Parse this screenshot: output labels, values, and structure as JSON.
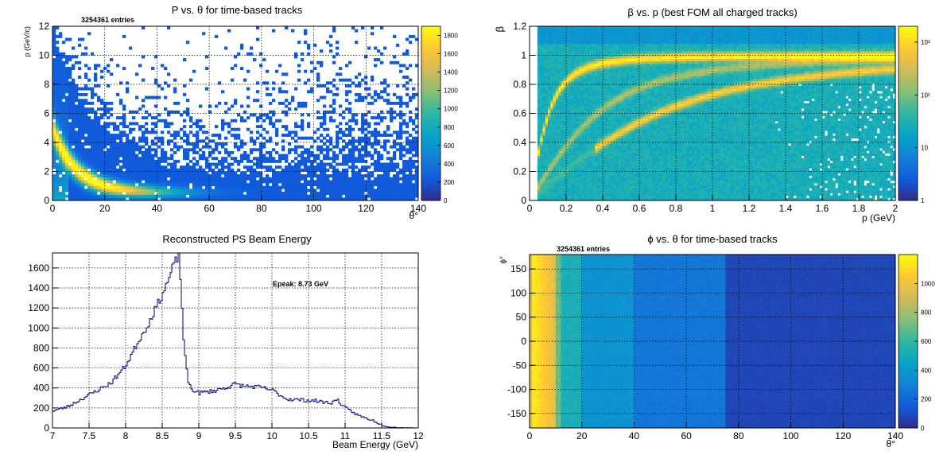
{
  "colors": {
    "palette": [
      "#352a87",
      "#0f5cdd",
      "#1481d6",
      "#06a4ca",
      "#2eb7a4",
      "#87bf77",
      "#d1bb59",
      "#fec832",
      "#f9fb0e"
    ]
  },
  "chart_data": [
    {
      "id": "p-theta",
      "type": "heatmap",
      "title": "P vs. θ for time-based tracks",
      "stats": "3254361 entries",
      "xlabel": "θ°",
      "ylabel": "p (GeV/c)",
      "xlim": [
        0,
        140
      ],
      "ylim": [
        0,
        12
      ],
      "xticks": [
        0,
        20,
        40,
        60,
        80,
        100,
        120,
        140
      ],
      "yticks": [
        0,
        2,
        4,
        6,
        8,
        10,
        12
      ],
      "zlim": [
        0,
        1900
      ],
      "zticks": [
        0,
        200,
        400,
        600,
        800,
        1000,
        1200,
        1400,
        1600,
        1800
      ],
      "grid": true,
      "palette_position": "right"
    },
    {
      "id": "beta-p",
      "type": "heatmap",
      "title": "β vs. p (best FOM all charged tracks)",
      "xlabel": "p (GeV)",
      "ylabel": "β",
      "xlim": [
        0,
        2
      ],
      "ylim": [
        0,
        1.2
      ],
      "xticks": [
        0,
        0.2,
        0.4,
        0.6,
        0.8,
        1,
        1.2,
        1.4,
        1.6,
        1.8,
        2
      ],
      "yticks": [
        0,
        0.2,
        0.4,
        0.6,
        0.8,
        1,
        1.2
      ],
      "zscale": "log",
      "zlim": [
        1,
        2000
      ],
      "zticks": [
        {
          "value": 1,
          "label": "1"
        },
        {
          "value": 10,
          "label": "10"
        },
        {
          "value": 100,
          "label": "10²"
        },
        {
          "value": 1000,
          "label": "10³"
        }
      ],
      "grid": true,
      "palette_position": "right"
    },
    {
      "id": "ps-beam",
      "type": "line",
      "style": "step",
      "title": "Reconstructed PS Beam Energy",
      "xlabel": "Beam Energy (GeV)",
      "ylabel": "",
      "xlim": [
        7,
        12
      ],
      "ylim": [
        0,
        1750
      ],
      "xticks": [
        7,
        7.5,
        8,
        8.5,
        9,
        9.5,
        10,
        10.5,
        11,
        11.5,
        12
      ],
      "yticks": [
        0,
        200,
        400,
        600,
        800,
        1000,
        1200,
        1400,
        1600
      ],
      "annotation": "Epeak: 8.73 GeV",
      "grid": true,
      "series": [
        {
          "x": [
            7.0,
            7.2,
            7.4,
            7.6,
            7.8,
            8.0,
            8.1,
            8.2,
            8.3,
            8.4,
            8.5,
            8.55,
            8.6,
            8.65,
            8.7,
            8.73,
            8.76,
            8.8,
            8.85,
            8.9,
            9.0,
            9.2,
            9.4,
            9.5,
            9.6,
            9.8,
            10.0,
            10.2,
            10.4,
            10.6,
            10.8,
            10.9,
            11.0,
            11.2,
            11.4,
            11.5,
            11.6,
            11.7,
            11.8,
            12.0
          ],
          "y": [
            170,
            210,
            290,
            370,
            450,
            620,
            760,
            900,
            1020,
            1180,
            1330,
            1420,
            1500,
            1620,
            1690,
            1720,
            1380,
            800,
            480,
            390,
            350,
            370,
            410,
            440,
            420,
            410,
            380,
            290,
            280,
            270,
            250,
            280,
            200,
            120,
            70,
            30,
            10,
            5,
            3,
            0
          ]
        }
      ]
    },
    {
      "id": "phi-theta",
      "type": "heatmap",
      "title": "ϕ vs. θ for time-based tracks",
      "stats": "3254361 entries",
      "xlabel": "θ°",
      "ylabel": "ϕ°",
      "xlim": [
        0,
        140
      ],
      "ylim": [
        -180,
        180
      ],
      "xticks": [
        0,
        20,
        40,
        60,
        80,
        100,
        120,
        140
      ],
      "yticks": [
        -150,
        -100,
        -50,
        0,
        50,
        100,
        150
      ],
      "zlim": [
        0,
        1200
      ],
      "zticks": [
        0,
        200,
        400,
        600,
        800,
        1000
      ],
      "grid": true,
      "palette_position": "right"
    }
  ]
}
